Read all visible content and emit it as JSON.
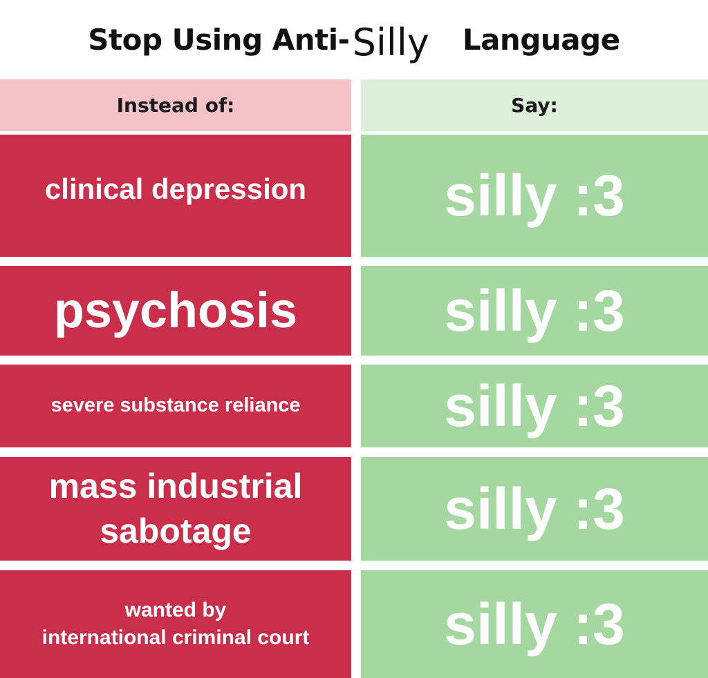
{
  "title": {
    "prefix": "Stop Using Anti-",
    "word": "Silly",
    "suffix": "Language"
  },
  "table": {
    "headers": [
      "Instead of:",
      "Say:"
    ],
    "rows": [
      [
        "clinical depression",
        "silly :3"
      ],
      [
        "psychosis",
        "silly :3"
      ],
      [
        "severe substance reliance",
        "silly :3"
      ],
      [
        "mass industrial\nsabotage",
        "silly :3"
      ],
      [
        "wanted by\ninternational criminal court",
        "silly :3"
      ]
    ]
  }
}
